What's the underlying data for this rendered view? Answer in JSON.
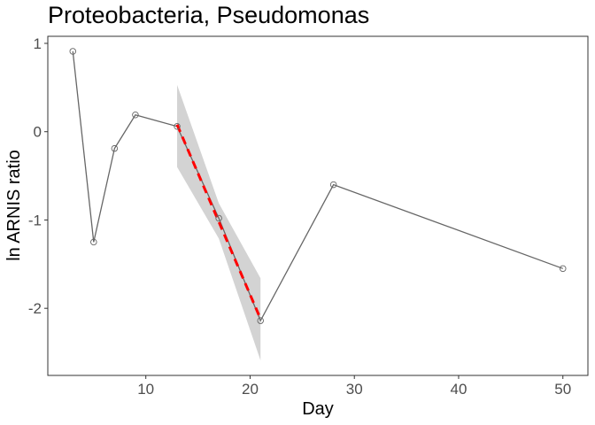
{
  "chart_data": {
    "type": "line",
    "title": "Proteobacteria, Pseudomonas",
    "xlabel": "Day",
    "ylabel": "ln ARNIS ratio",
    "xlim": [
      0.6,
      52.4
    ],
    "ylim": [
      -2.76,
      1.08
    ],
    "xticks": [
      10,
      20,
      30,
      40,
      50
    ],
    "yticks": [
      -2,
      -1,
      0,
      1
    ],
    "grid": false,
    "series": [
      {
        "style": "line-with-open-circles",
        "color": "#666666",
        "x": [
          3,
          5,
          7,
          9,
          13,
          17,
          21,
          28,
          50
        ],
        "y": [
          0.91,
          -1.25,
          -0.19,
          0.19,
          0.06,
          -0.98,
          -2.14,
          -0.6,
          -1.55
        ]
      }
    ],
    "fit": {
      "style": "dashed",
      "color": "#ff0000",
      "x": [
        13,
        21
      ],
      "y": [
        0.08,
        -2.12
      ]
    },
    "confidence_band": {
      "color": "#d3d3d3",
      "x": [
        13,
        17,
        21
      ],
      "upper": [
        0.53,
        -0.81,
        -1.66
      ],
      "lower": [
        -0.4,
        -1.21,
        -2.59
      ]
    }
  }
}
